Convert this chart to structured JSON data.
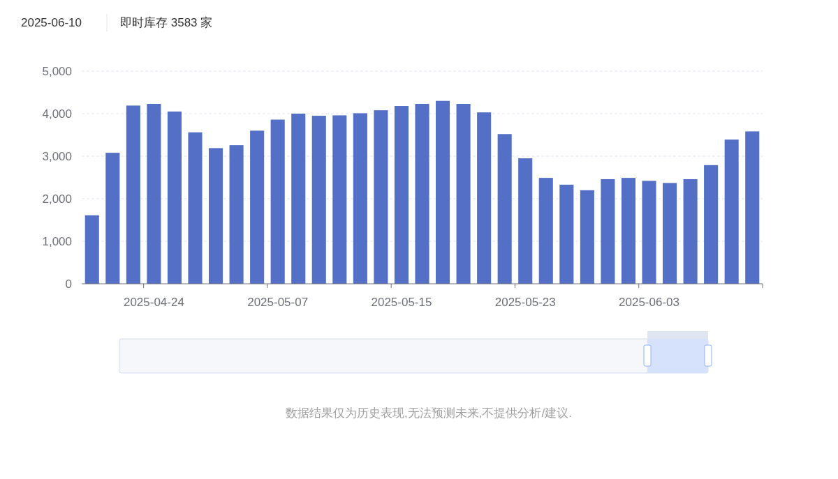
{
  "chart_data": {
    "type": "bar",
    "title": "2025-06-10",
    "subtitle": "即时库存 3583 家",
    "categories": [
      null,
      null,
      null,
      "2025-04-24",
      null,
      null,
      null,
      null,
      null,
      "2025-05-07",
      null,
      null,
      null,
      null,
      null,
      "2025-05-15",
      null,
      null,
      null,
      null,
      null,
      "2025-05-23",
      null,
      null,
      null,
      null,
      null,
      "2025-06-03",
      null,
      null,
      null,
      null,
      null
    ],
    "values": [
      1610,
      3080,
      4190,
      4230,
      4050,
      3560,
      3190,
      3260,
      3600,
      3860,
      4000,
      3950,
      3960,
      4010,
      4080,
      4180,
      4230,
      4300,
      4230,
      4030,
      3520,
      2950,
      2490,
      2330,
      2200,
      2460,
      2490,
      2420,
      2370,
      2460,
      2790,
      3390,
      3583
    ],
    "color": "#5470c6",
    "ylim": [
      0,
      5000
    ],
    "yticks": [
      0,
      {
        "value": 1000,
        "label": "1,000"
      },
      {
        "value": 2000,
        "label": "2,000"
      },
      {
        "value": 3000,
        "label": "3,000"
      },
      {
        "value": 4000,
        "label": "4,000"
      },
      {
        "value": 5000,
        "label": "5,000"
      }
    ],
    "grid": "y",
    "annotations": [
      "数据结果仅为历史表现,无法预测未来,不提供分析/建议."
    ]
  }
}
